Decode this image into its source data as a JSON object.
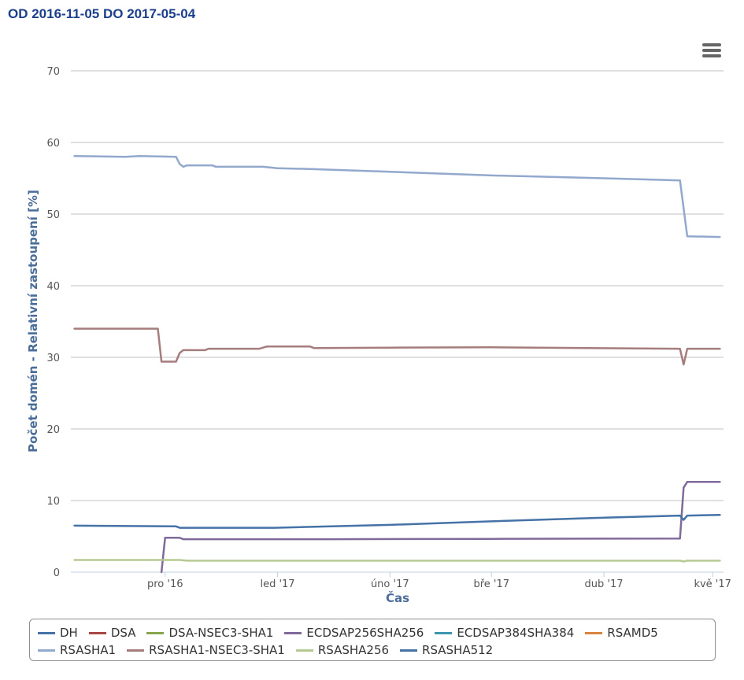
{
  "header": {
    "title": "OD 2016-11-05 DO 2017-05-04"
  },
  "chart_data": {
    "type": "line",
    "title": "OD 2016-11-05 DO 2017-05-04",
    "xlabel": "Čas",
    "ylabel": "Počet domén - Relativní zastoupení [%]",
    "ylim": [
      0,
      70
    ],
    "yticks": [
      "0",
      "10",
      "20",
      "30",
      "40",
      "50",
      "60",
      "70"
    ],
    "xlim": [
      "2016-11-05",
      "2017-05-04"
    ],
    "xticks": [
      {
        "date": "2016-12-01",
        "label": "pro '16"
      },
      {
        "date": "2017-01-01",
        "label": "led '17"
      },
      {
        "date": "2017-02-01",
        "label": "úno '17"
      },
      {
        "date": "2017-03-01",
        "label": "bře '17"
      },
      {
        "date": "2017-04-01",
        "label": "dub '17"
      },
      {
        "date": "2017-05-01",
        "label": "kvě '17"
      }
    ],
    "grid": true,
    "legend_position": "bottom",
    "series": [
      {
        "name": "DH",
        "color": "#4572a7",
        "points": []
      },
      {
        "name": "DSA",
        "color": "#aa4643",
        "points": []
      },
      {
        "name": "DSA-NSEC3-SHA1",
        "color": "#89a54e",
        "points": []
      },
      {
        "name": "ECDSAP256SHA256",
        "color": "#80699b",
        "points": [
          [
            "2016-11-30",
            0
          ],
          [
            "2016-12-01",
            4.8
          ],
          [
            "2016-12-05",
            4.8
          ],
          [
            "2016-12-06",
            4.6
          ],
          [
            "2017-01-15",
            4.6
          ],
          [
            "2017-03-01",
            4.65
          ],
          [
            "2017-04-22",
            4.7
          ],
          [
            "2017-04-23",
            11.8
          ],
          [
            "2017-04-24",
            12.6
          ],
          [
            "2017-05-03",
            12.6
          ]
        ]
      },
      {
        "name": "ECDSAP384SHA384",
        "color": "#3d96ae",
        "points": []
      },
      {
        "name": "RSAMD5",
        "color": "#db843d",
        "points": []
      },
      {
        "name": "RSASHA1",
        "color": "#92a8cd",
        "points": [
          [
            "2016-11-06",
            58.1
          ],
          [
            "2016-11-20",
            58.0
          ],
          [
            "2016-11-24",
            58.1
          ],
          [
            "2016-12-04",
            58.0
          ],
          [
            "2016-12-05",
            57.0
          ],
          [
            "2016-12-06",
            56.6
          ],
          [
            "2016-12-07",
            56.8
          ],
          [
            "2016-12-14",
            56.8
          ],
          [
            "2016-12-15",
            56.6
          ],
          [
            "2016-12-28",
            56.6
          ],
          [
            "2017-01-01",
            56.4
          ],
          [
            "2017-01-10",
            56.3
          ],
          [
            "2017-02-01",
            55.9
          ],
          [
            "2017-03-01",
            55.4
          ],
          [
            "2017-04-01",
            55.0
          ],
          [
            "2017-04-22",
            54.7
          ],
          [
            "2017-04-24",
            46.9
          ],
          [
            "2017-05-03",
            46.8
          ]
        ]
      },
      {
        "name": "RSASHA1-NSEC3-SHA1",
        "color": "#a47d7c",
        "points": [
          [
            "2016-11-06",
            34.0
          ],
          [
            "2016-11-15",
            34.0
          ],
          [
            "2016-11-29",
            34.0
          ],
          [
            "2016-11-30",
            29.4
          ],
          [
            "2016-12-04",
            29.4
          ],
          [
            "2016-12-05",
            30.6
          ],
          [
            "2016-12-06",
            31.0
          ],
          [
            "2016-12-12",
            31.0
          ],
          [
            "2016-12-13",
            31.2
          ],
          [
            "2016-12-27",
            31.2
          ],
          [
            "2016-12-29",
            31.5
          ],
          [
            "2017-01-10",
            31.5
          ],
          [
            "2017-01-11",
            31.3
          ],
          [
            "2017-02-01",
            31.35
          ],
          [
            "2017-03-01",
            31.4
          ],
          [
            "2017-04-22",
            31.2
          ],
          [
            "2017-04-23",
            29.0
          ],
          [
            "2017-04-24",
            31.2
          ],
          [
            "2017-05-03",
            31.2
          ]
        ]
      },
      {
        "name": "RSASHA256",
        "color": "#b5ca92",
        "points": [
          [
            "2016-11-06",
            1.7
          ],
          [
            "2016-12-05",
            1.7
          ],
          [
            "2016-12-07",
            1.6
          ],
          [
            "2017-04-22",
            1.6
          ],
          [
            "2017-04-23",
            1.5
          ],
          [
            "2017-04-24",
            1.6
          ],
          [
            "2017-05-03",
            1.6
          ]
        ]
      },
      {
        "name": "RSASHA512",
        "color": "#4572a7",
        "points": [
          [
            "2016-11-06",
            6.5
          ],
          [
            "2016-12-04",
            6.4
          ],
          [
            "2016-12-05",
            6.2
          ],
          [
            "2016-12-31",
            6.2
          ],
          [
            "2017-02-01",
            6.6
          ],
          [
            "2017-03-01",
            7.1
          ],
          [
            "2017-04-01",
            7.6
          ],
          [
            "2017-04-22",
            7.9
          ],
          [
            "2017-04-23",
            7.3
          ],
          [
            "2017-04-24",
            7.9
          ],
          [
            "2017-05-03",
            8.0
          ]
        ]
      }
    ]
  }
}
